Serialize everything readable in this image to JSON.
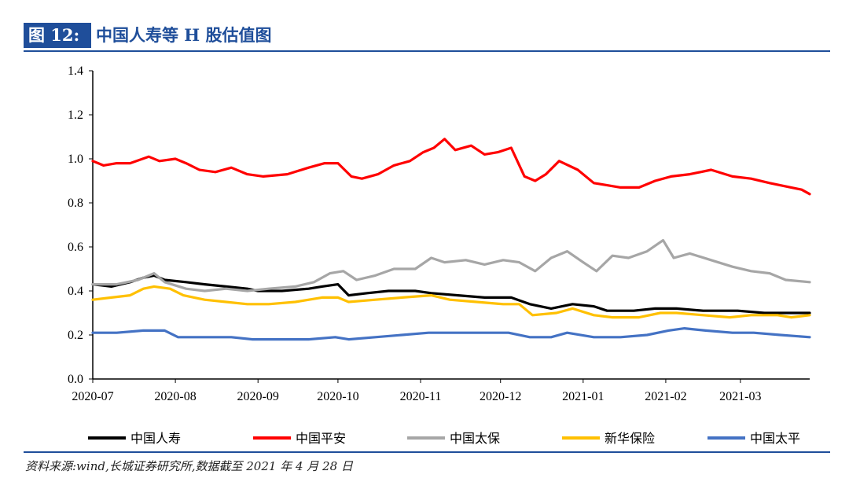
{
  "header": {
    "tag": "图 12:",
    "title": "中国人寿等 H 股估值图"
  },
  "source": "资料来源:wind,长城证券研究所,数据截至 2021 年 4 月 28 日",
  "chart_data": {
    "type": "line",
    "title": "中国人寿等 H 股估值图",
    "xlabel": "",
    "ylabel": "",
    "ylim": [
      0.0,
      1.4
    ],
    "yticks": [
      "0.0",
      "0.2",
      "0.4",
      "0.6",
      "0.8",
      "1.0",
      "1.2",
      "1.4"
    ],
    "xlim": [
      "2020-07-01",
      "2021-03-27"
    ],
    "xticks": [
      "2020-07",
      "2020-08",
      "2020-09",
      "2020-10",
      "2020-11",
      "2020-12",
      "2021-01",
      "2021-02",
      "2021-03"
    ],
    "grid": false,
    "legend": "bottom",
    "series": [
      {
        "name": "中国人寿",
        "color": "#000000",
        "points": [
          [
            "2020-07-01",
            0.43
          ],
          [
            "2020-07-08",
            0.42
          ],
          [
            "2020-07-15",
            0.44
          ],
          [
            "2020-07-20",
            0.46
          ],
          [
            "2020-07-24",
            0.47
          ],
          [
            "2020-07-28",
            0.45
          ],
          [
            "2020-08-05",
            0.44
          ],
          [
            "2020-08-12",
            0.43
          ],
          [
            "2020-08-20",
            0.42
          ],
          [
            "2020-08-28",
            0.41
          ],
          [
            "2020-09-01",
            0.4
          ],
          [
            "2020-09-10",
            0.4
          ],
          [
            "2020-09-20",
            0.41
          ],
          [
            "2020-09-25",
            0.42
          ],
          [
            "2020-10-01",
            0.43
          ],
          [
            "2020-10-05",
            0.38
          ],
          [
            "2020-10-12",
            0.39
          ],
          [
            "2020-10-20",
            0.4
          ],
          [
            "2020-10-30",
            0.4
          ],
          [
            "2020-11-05",
            0.39
          ],
          [
            "2020-11-15",
            0.38
          ],
          [
            "2020-11-25",
            0.37
          ],
          [
            "2020-12-05",
            0.37
          ],
          [
            "2020-12-12",
            0.34
          ],
          [
            "2020-12-20",
            0.32
          ],
          [
            "2020-12-28",
            0.34
          ],
          [
            "2021-01-05",
            0.33
          ],
          [
            "2021-01-10",
            0.31
          ],
          [
            "2021-01-20",
            0.31
          ],
          [
            "2021-01-28",
            0.32
          ],
          [
            "2021-02-05",
            0.32
          ],
          [
            "2021-02-15",
            0.31
          ],
          [
            "2021-02-28",
            0.31
          ],
          [
            "2021-03-10",
            0.3
          ],
          [
            "2021-03-18",
            0.3
          ],
          [
            "2021-03-27",
            0.3
          ]
        ]
      },
      {
        "name": "中国平安",
        "color": "#ff0000",
        "points": [
          [
            "2020-07-01",
            0.99
          ],
          [
            "2020-07-05",
            0.97
          ],
          [
            "2020-07-10",
            0.98
          ],
          [
            "2020-07-15",
            0.98
          ],
          [
            "2020-07-22",
            1.01
          ],
          [
            "2020-07-26",
            0.99
          ],
          [
            "2020-08-01",
            1.0
          ],
          [
            "2020-08-05",
            0.98
          ],
          [
            "2020-08-10",
            0.95
          ],
          [
            "2020-08-16",
            0.94
          ],
          [
            "2020-08-22",
            0.96
          ],
          [
            "2020-08-28",
            0.93
          ],
          [
            "2020-09-03",
            0.92
          ],
          [
            "2020-09-12",
            0.93
          ],
          [
            "2020-09-20",
            0.96
          ],
          [
            "2020-09-26",
            0.98
          ],
          [
            "2020-10-01",
            0.98
          ],
          [
            "2020-10-06",
            0.92
          ],
          [
            "2020-10-10",
            0.91
          ],
          [
            "2020-10-16",
            0.93
          ],
          [
            "2020-10-22",
            0.97
          ],
          [
            "2020-10-28",
            0.99
          ],
          [
            "2020-11-02",
            1.03
          ],
          [
            "2020-11-06",
            1.05
          ],
          [
            "2020-11-10",
            1.09
          ],
          [
            "2020-11-14",
            1.04
          ],
          [
            "2020-11-20",
            1.06
          ],
          [
            "2020-11-25",
            1.02
          ],
          [
            "2020-11-30",
            1.03
          ],
          [
            "2020-12-05",
            1.05
          ],
          [
            "2020-12-10",
            0.92
          ],
          [
            "2020-12-14",
            0.9
          ],
          [
            "2020-12-18",
            0.93
          ],
          [
            "2020-12-23",
            0.99
          ],
          [
            "2020-12-30",
            0.95
          ],
          [
            "2021-01-05",
            0.89
          ],
          [
            "2021-01-10",
            0.88
          ],
          [
            "2021-01-15",
            0.87
          ],
          [
            "2021-01-22",
            0.87
          ],
          [
            "2021-01-28",
            0.9
          ],
          [
            "2021-02-03",
            0.92
          ],
          [
            "2021-02-10",
            0.93
          ],
          [
            "2021-02-18",
            0.95
          ],
          [
            "2021-02-26",
            0.92
          ],
          [
            "2021-03-05",
            0.91
          ],
          [
            "2021-03-12",
            0.89
          ],
          [
            "2021-03-20",
            0.87
          ],
          [
            "2021-03-24",
            0.86
          ],
          [
            "2021-03-27",
            0.84
          ]
        ]
      },
      {
        "name": "中国太保",
        "color": "#a6a6a6",
        "points": [
          [
            "2020-07-01",
            0.43
          ],
          [
            "2020-07-10",
            0.43
          ],
          [
            "2020-07-18",
            0.45
          ],
          [
            "2020-07-24",
            0.48
          ],
          [
            "2020-07-28",
            0.44
          ],
          [
            "2020-08-05",
            0.41
          ],
          [
            "2020-08-12",
            0.4
          ],
          [
            "2020-08-20",
            0.41
          ],
          [
            "2020-08-28",
            0.4
          ],
          [
            "2020-09-05",
            0.41
          ],
          [
            "2020-09-15",
            0.42
          ],
          [
            "2020-09-22",
            0.44
          ],
          [
            "2020-09-28",
            0.48
          ],
          [
            "2020-10-03",
            0.49
          ],
          [
            "2020-10-08",
            0.45
          ],
          [
            "2020-10-15",
            0.47
          ],
          [
            "2020-10-22",
            0.5
          ],
          [
            "2020-10-30",
            0.5
          ],
          [
            "2020-11-05",
            0.55
          ],
          [
            "2020-11-10",
            0.53
          ],
          [
            "2020-11-18",
            0.54
          ],
          [
            "2020-11-25",
            0.52
          ],
          [
            "2020-12-02",
            0.54
          ],
          [
            "2020-12-08",
            0.53
          ],
          [
            "2020-12-14",
            0.49
          ],
          [
            "2020-12-20",
            0.55
          ],
          [
            "2020-12-26",
            0.58
          ],
          [
            "2021-01-01",
            0.53
          ],
          [
            "2021-01-06",
            0.49
          ],
          [
            "2021-01-12",
            0.56
          ],
          [
            "2021-01-18",
            0.55
          ],
          [
            "2021-01-25",
            0.58
          ],
          [
            "2021-01-31",
            0.63
          ],
          [
            "2021-02-04",
            0.55
          ],
          [
            "2021-02-10",
            0.57
          ],
          [
            "2021-02-18",
            0.54
          ],
          [
            "2021-02-26",
            0.51
          ],
          [
            "2021-03-05",
            0.49
          ],
          [
            "2021-03-12",
            0.48
          ],
          [
            "2021-03-18",
            0.45
          ],
          [
            "2021-03-27",
            0.44
          ]
        ]
      },
      {
        "name": "新华保险",
        "color": "#ffc000",
        "points": [
          [
            "2020-07-01",
            0.36
          ],
          [
            "2020-07-08",
            0.37
          ],
          [
            "2020-07-15",
            0.38
          ],
          [
            "2020-07-20",
            0.41
          ],
          [
            "2020-07-24",
            0.42
          ],
          [
            "2020-07-30",
            0.41
          ],
          [
            "2020-08-04",
            0.38
          ],
          [
            "2020-08-12",
            0.36
          ],
          [
            "2020-08-20",
            0.35
          ],
          [
            "2020-08-28",
            0.34
          ],
          [
            "2020-09-05",
            0.34
          ],
          [
            "2020-09-15",
            0.35
          ],
          [
            "2020-09-25",
            0.37
          ],
          [
            "2020-10-01",
            0.37
          ],
          [
            "2020-10-05",
            0.35
          ],
          [
            "2020-10-15",
            0.36
          ],
          [
            "2020-10-25",
            0.37
          ],
          [
            "2020-11-05",
            0.38
          ],
          [
            "2020-11-12",
            0.36
          ],
          [
            "2020-11-22",
            0.35
          ],
          [
            "2020-12-02",
            0.34
          ],
          [
            "2020-12-08",
            0.34
          ],
          [
            "2020-12-13",
            0.29
          ],
          [
            "2020-12-22",
            0.3
          ],
          [
            "2020-12-28",
            0.32
          ],
          [
            "2021-01-05",
            0.29
          ],
          [
            "2021-01-12",
            0.28
          ],
          [
            "2021-01-22",
            0.28
          ],
          [
            "2021-01-30",
            0.3
          ],
          [
            "2021-02-05",
            0.3
          ],
          [
            "2021-02-15",
            0.29
          ],
          [
            "2021-02-25",
            0.28
          ],
          [
            "2021-03-05",
            0.29
          ],
          [
            "2021-03-15",
            0.29
          ],
          [
            "2021-03-20",
            0.28
          ],
          [
            "2021-03-27",
            0.29
          ]
        ]
      },
      {
        "name": "中国太平",
        "color": "#4472c4",
        "points": [
          [
            "2020-07-01",
            0.21
          ],
          [
            "2020-07-10",
            0.21
          ],
          [
            "2020-07-20",
            0.22
          ],
          [
            "2020-07-28",
            0.22
          ],
          [
            "2020-08-02",
            0.19
          ],
          [
            "2020-08-12",
            0.19
          ],
          [
            "2020-08-22",
            0.19
          ],
          [
            "2020-08-30",
            0.18
          ],
          [
            "2020-09-08",
            0.18
          ],
          [
            "2020-09-20",
            0.18
          ],
          [
            "2020-09-30",
            0.19
          ],
          [
            "2020-10-05",
            0.18
          ],
          [
            "2020-10-15",
            0.19
          ],
          [
            "2020-10-25",
            0.2
          ],
          [
            "2020-11-04",
            0.21
          ],
          [
            "2020-11-14",
            0.21
          ],
          [
            "2020-11-24",
            0.21
          ],
          [
            "2020-12-04",
            0.21
          ],
          [
            "2020-12-12",
            0.19
          ],
          [
            "2020-12-20",
            0.19
          ],
          [
            "2020-12-26",
            0.21
          ],
          [
            "2021-01-05",
            0.19
          ],
          [
            "2021-01-15",
            0.19
          ],
          [
            "2021-01-25",
            0.2
          ],
          [
            "2021-02-02",
            0.22
          ],
          [
            "2021-02-08",
            0.23
          ],
          [
            "2021-02-16",
            0.22
          ],
          [
            "2021-02-26",
            0.21
          ],
          [
            "2021-03-06",
            0.21
          ],
          [
            "2021-03-16",
            0.2
          ],
          [
            "2021-03-27",
            0.19
          ]
        ]
      }
    ]
  }
}
